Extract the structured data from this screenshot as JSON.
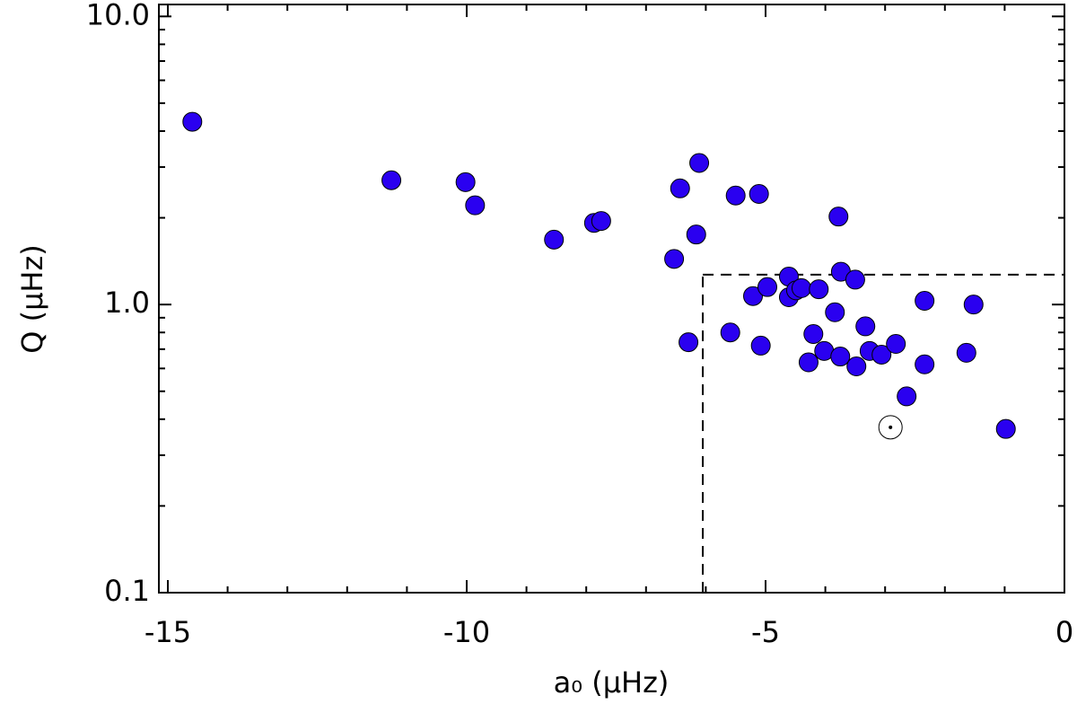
{
  "chart_data": {
    "type": "scatter",
    "x_label": "a₀ (μHz)",
    "y_label": "Q (μHz)",
    "xlim": [
      -15.15,
      0
    ],
    "ylim": [
      0.1,
      11
    ],
    "log_y": true,
    "xticks": [
      -15,
      -10,
      -5,
      0
    ],
    "xminorticks": [
      -14,
      -13,
      -12,
      -11,
      -9,
      -8,
      -7,
      -6,
      -4,
      -3,
      -2,
      -1
    ],
    "yticks": [
      0.1,
      {
        "value": 1,
        "label": "1.0"
      },
      {
        "value": 10,
        "label": "10.0"
      }
    ],
    "yminorticks": [
      0.2,
      0.3,
      0.4,
      0.5,
      0.6,
      0.7,
      0.8,
      0.9,
      2,
      3,
      4,
      5,
      6,
      7,
      8,
      9
    ],
    "series": [
      {
        "color": "#2a00f0",
        "x": [
          -14.59,
          -11.26,
          -10.02,
          -9.86,
          -8.54,
          -7.87,
          -7.75,
          -6.11,
          -6.43,
          -6.16,
          -6.53,
          -6.29,
          -5.5,
          -5.11,
          -3.78,
          -5.59,
          -5.08,
          -5.21,
          -4.97,
          -4.61,
          -4.61,
          -4.49,
          -4.4,
          -4.11,
          -4.2,
          -4.02,
          -4.28,
          -3.84,
          -3.74,
          -3.5,
          -3.75,
          -3.48,
          -3.33,
          -3.26,
          -3.06,
          -2.82,
          -2.64,
          -2.34,
          -2.34,
          -1.64,
          -1.52,
          -0.98
        ],
        "values": [
          4.31,
          2.7,
          2.66,
          2.21,
          1.68,
          1.92,
          1.95,
          3.1,
          2.53,
          1.75,
          1.44,
          0.74,
          2.39,
          2.42,
          2.02,
          0.8,
          0.72,
          1.07,
          1.15,
          1.25,
          1.06,
          1.12,
          1.14,
          1.13,
          0.79,
          0.69,
          0.63,
          0.94,
          1.3,
          1.22,
          0.66,
          0.61,
          0.84,
          0.69,
          0.67,
          0.73,
          0.48,
          1.03,
          0.62,
          0.68,
          1.0,
          0.37
        ]
      }
    ],
    "reference_point": {
      "x": -2.91,
      "y": 0.375
    },
    "dashed_box": {
      "x": -6.05,
      "y": 1.27
    }
  }
}
